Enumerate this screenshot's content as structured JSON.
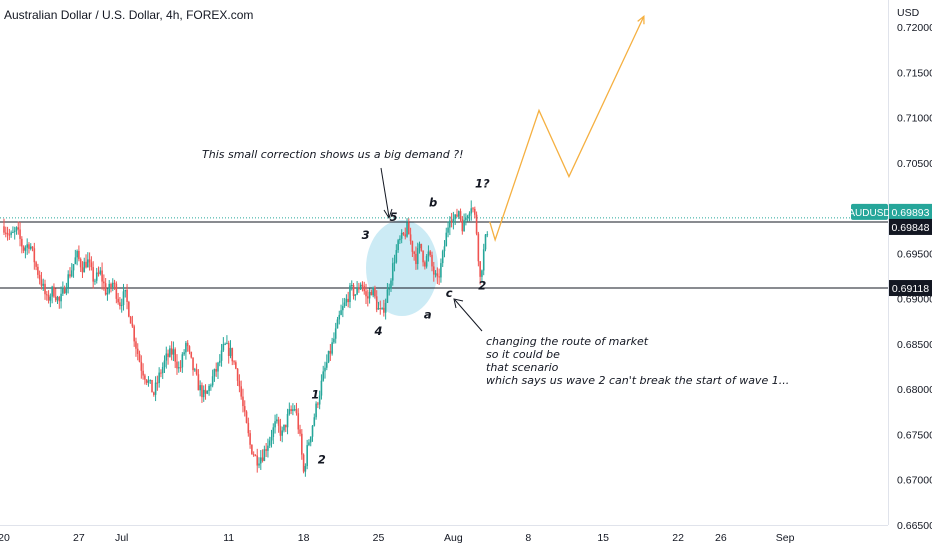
{
  "header": {
    "title": "Australian Dollar / U.S. Dollar, 4h, FOREX.com"
  },
  "chart_data": {
    "type": "candlestick",
    "symbol": "AUDUSD",
    "currency_label": "USD",
    "interval": "4h",
    "ylim": [
      0.665,
      0.723
    ],
    "y_ticks": [
      "0.72000",
      "0.71500",
      "0.71000",
      "0.70500",
      "0.70000",
      "0.69500",
      "0.69000",
      "0.68500",
      "0.68000",
      "0.67500",
      "0.67000",
      "0.66500"
    ],
    "x_ticks": [
      {
        "label": "20",
        "day": 0
      },
      {
        "label": "27",
        "day": 7
      },
      {
        "label": "Jul",
        "day": 11
      },
      {
        "label": "11",
        "day": 21
      },
      {
        "label": "18",
        "day": 28
      },
      {
        "label": "25",
        "day": 35
      },
      {
        "label": "Aug",
        "day": 42
      },
      {
        "label": "8",
        "day": 49
      },
      {
        "label": "15",
        "day": 56
      },
      {
        "label": "22",
        "day": 63
      },
      {
        "label": "26",
        "day": 67
      },
      {
        "label": "Sep",
        "day": 73
      }
    ],
    "price_badges": [
      {
        "label": "AUDUSD",
        "value": "0.69893",
        "color": "#26a69a"
      },
      {
        "value": "0.69848",
        "color": "#131722"
      },
      {
        "value": "0.69118",
        "color": "#131722"
      }
    ],
    "horizontal_lines": [
      0.69848,
      0.69118
    ],
    "dotted_line": 0.69893,
    "colors": {
      "up": "#26a69a",
      "down": "#ef5350",
      "projection": "#f5b041",
      "ellipse": "#bfe6f2"
    },
    "price_path": [
      {
        "day": 0.0,
        "price": 0.698
      },
      {
        "day": 0.6,
        "price": 0.6968
      },
      {
        "day": 1.2,
        "price": 0.6975
      },
      {
        "day": 1.8,
        "price": 0.6955
      },
      {
        "day": 2.4,
        "price": 0.6962
      },
      {
        "day": 3.0,
        "price": 0.6935
      },
      {
        "day": 3.5,
        "price": 0.6918
      },
      {
        "day": 4.0,
        "price": 0.6898
      },
      {
        "day": 4.6,
        "price": 0.691
      },
      {
        "day": 5.2,
        "price": 0.6895
      },
      {
        "day": 5.8,
        "price": 0.6918
      },
      {
        "day": 6.3,
        "price": 0.6932
      },
      {
        "day": 6.8,
        "price": 0.6948
      },
      {
        "day": 7.3,
        "price": 0.6935
      },
      {
        "day": 7.8,
        "price": 0.6942
      },
      {
        "day": 8.4,
        "price": 0.692
      },
      {
        "day": 9.0,
        "price": 0.6928
      },
      {
        "day": 9.6,
        "price": 0.6905
      },
      {
        "day": 10.2,
        "price": 0.6918
      },
      {
        "day": 10.8,
        "price": 0.6895
      },
      {
        "day": 11.3,
        "price": 0.6905
      },
      {
        "day": 11.8,
        "price": 0.688
      },
      {
        "day": 12.3,
        "price": 0.685
      },
      {
        "day": 12.8,
        "price": 0.6825
      },
      {
        "day": 13.4,
        "price": 0.681
      },
      {
        "day": 14.0,
        "price": 0.6795
      },
      {
        "day": 14.6,
        "price": 0.6818
      },
      {
        "day": 15.2,
        "price": 0.6835
      },
      {
        "day": 15.8,
        "price": 0.6842
      },
      {
        "day": 16.4,
        "price": 0.682
      },
      {
        "day": 17.0,
        "price": 0.685
      },
      {
        "day": 17.6,
        "price": 0.6825
      },
      {
        "day": 18.2,
        "price": 0.6803
      },
      {
        "day": 18.8,
        "price": 0.679
      },
      {
        "day": 19.4,
        "price": 0.681
      },
      {
        "day": 20.0,
        "price": 0.6825
      },
      {
        "day": 20.6,
        "price": 0.6848
      },
      {
        "day": 21.2,
        "price": 0.684
      },
      {
        "day": 21.8,
        "price": 0.6818
      },
      {
        "day": 22.4,
        "price": 0.6775
      },
      {
        "day": 23.0,
        "price": 0.6738
      },
      {
        "day": 23.6,
        "price": 0.6722
      },
      {
        "day": 24.2,
        "price": 0.6728
      },
      {
        "day": 24.8,
        "price": 0.6745
      },
      {
        "day": 25.4,
        "price": 0.6762
      },
      {
        "day": 26.0,
        "price": 0.675
      },
      {
        "day": 26.6,
        "price": 0.6772
      },
      {
        "day": 27.2,
        "price": 0.678
      },
      {
        "day": 27.6,
        "price": 0.6752
      },
      {
        "day": 28.0,
        "price": 0.6708
      },
      {
        "day": 28.4,
        "price": 0.6738
      },
      {
        "day": 28.9,
        "price": 0.6765
      },
      {
        "day": 29.4,
        "price": 0.6792
      },
      {
        "day": 29.9,
        "price": 0.6818
      },
      {
        "day": 30.4,
        "price": 0.6838
      },
      {
        "day": 30.9,
        "price": 0.6858
      },
      {
        "day": 31.4,
        "price": 0.6882
      },
      {
        "day": 31.9,
        "price": 0.6895
      },
      {
        "day": 32.4,
        "price": 0.691
      },
      {
        "day": 32.9,
        "price": 0.6905
      },
      {
        "day": 33.4,
        "price": 0.692
      },
      {
        "day": 33.9,
        "price": 0.6898
      },
      {
        "day": 34.4,
        "price": 0.6912
      },
      {
        "day": 34.9,
        "price": 0.689
      },
      {
        "day": 35.3,
        "price": 0.6882
      },
      {
        "day": 35.7,
        "price": 0.69
      },
      {
        "day": 36.1,
        "price": 0.6922
      },
      {
        "day": 36.5,
        "price": 0.6945
      },
      {
        "day": 36.9,
        "price": 0.6962
      },
      {
        "day": 37.3,
        "price": 0.6968
      },
      {
        "day": 37.7,
        "price": 0.6978
      },
      {
        "day": 38.1,
        "price": 0.6958
      },
      {
        "day": 38.5,
        "price": 0.6945
      },
      {
        "day": 38.9,
        "price": 0.6958
      },
      {
        "day": 39.3,
        "price": 0.694
      },
      {
        "day": 39.7,
        "price": 0.695
      },
      {
        "day": 40.1,
        "price": 0.693
      },
      {
        "day": 40.5,
        "price": 0.6918
      },
      {
        "day": 40.9,
        "price": 0.694
      },
      {
        "day": 41.3,
        "price": 0.6968
      },
      {
        "day": 41.7,
        "price": 0.6995
      },
      {
        "day": 42.1,
        "price": 0.6985
      },
      {
        "day": 42.5,
        "price": 0.6998
      },
      {
        "day": 42.9,
        "price": 0.6978
      },
      {
        "day": 43.3,
        "price": 0.6996
      },
      {
        "day": 43.7,
        "price": 0.7005
      },
      {
        "day": 44.1,
        "price": 0.6985
      },
      {
        "day": 44.5,
        "price": 0.6922
      },
      {
        "day": 44.9,
        "price": 0.6958
      },
      {
        "day": 45.3,
        "price": 0.6985
      }
    ],
    "projection_path": [
      {
        "day": 45.4,
        "price": 0.6985
      },
      {
        "day": 45.9,
        "price": 0.6965
      },
      {
        "day": 50.0,
        "price": 0.7108
      },
      {
        "day": 52.8,
        "price": 0.7035
      },
      {
        "day": 59.8,
        "price": 0.7212
      }
    ],
    "annotations": {
      "top_note": "This small correction shows us a big demand ?!",
      "bottom_note": [
        "changing the route of market",
        "so it could be",
        "that scenario",
        "which says us wave 2 can't break the start of wave 1..."
      ]
    },
    "wave_labels": [
      {
        "text": "1",
        "day": 29.1,
        "price": 0.679
      },
      {
        "text": "2",
        "day": 29.7,
        "price": 0.6718
      },
      {
        "text": "3",
        "day": 33.8,
        "price": 0.6966
      },
      {
        "text": "4",
        "day": 35.0,
        "price": 0.686
      },
      {
        "text": "5",
        "day": 36.4,
        "price": 0.6986
      },
      {
        "text": "a",
        "day": 39.6,
        "price": 0.6878
      },
      {
        "text": "b",
        "day": 40.1,
        "price": 0.7002
      },
      {
        "text": "c",
        "day": 41.6,
        "price": 0.6902
      },
      {
        "text": "1?",
        "day": 44.7,
        "price": 0.7023
      },
      {
        "text": "2",
        "day": 44.7,
        "price": 0.691
      }
    ]
  }
}
